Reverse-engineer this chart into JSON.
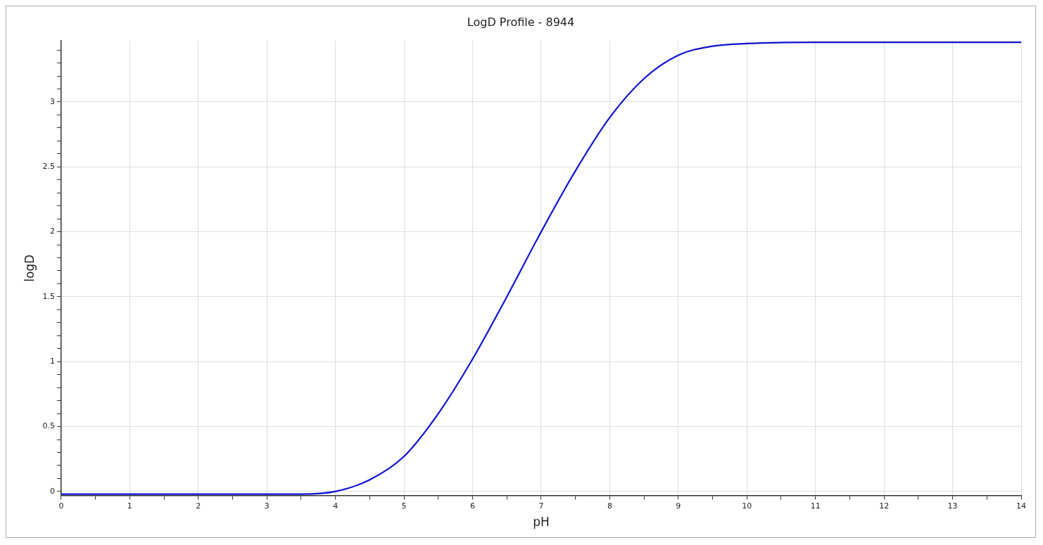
{
  "chart_data": {
    "type": "line",
    "title": "LogD Profile - 8944",
    "xlabel": "pH",
    "ylabel": "logD",
    "x": [
      0,
      1,
      2,
      3,
      3.5,
      4,
      4.5,
      5,
      5.5,
      6,
      6.5,
      7,
      7.5,
      8,
      8.5,
      9,
      9.5,
      10,
      11,
      12,
      13,
      14
    ],
    "series": [
      {
        "color": "#1010d0",
        "values": [
          -0.02,
          -0.02,
          -0.02,
          -0.02,
          -0.02,
          0.0,
          0.09,
          0.27,
          0.6,
          1.02,
          1.5,
          2.0,
          2.47,
          2.88,
          3.18,
          3.36,
          3.43,
          3.45,
          3.46,
          3.46,
          3.46,
          3.46
        ]
      }
    ],
    "xlim": [
      0,
      14
    ],
    "xticks": [
      0,
      {
        "value": 0.5,
        "label": null
      },
      1,
      {
        "value": 1.5,
        "label": null
      },
      2,
      {
        "value": 2.5,
        "label": null
      },
      3,
      {
        "value": 3.5,
        "label": null
      },
      4,
      {
        "value": 4.5,
        "label": null
      },
      5,
      {
        "value": 5.5,
        "label": null
      },
      6,
      {
        "value": 6.5,
        "label": null
      },
      7,
      {
        "value": 7.5,
        "label": null
      },
      8,
      {
        "value": 8.5,
        "label": null
      },
      9,
      {
        "value": 9.5,
        "label": null
      },
      10,
      {
        "value": 10.5,
        "label": null
      },
      11,
      {
        "value": 11.5,
        "label": null
      },
      12,
      {
        "value": 12.5,
        "label": null
      },
      13,
      {
        "value": 13.5,
        "label": null
      },
      14
    ],
    "ylim": [
      -0.03,
      3.47
    ],
    "yticks": [
      0,
      {
        "value": 0.1,
        "label": null
      },
      {
        "value": 0.2,
        "label": null
      },
      {
        "value": 0.3,
        "label": null
      },
      {
        "value": 0.4,
        "label": null
      },
      0.5,
      {
        "value": 0.6,
        "label": null
      },
      {
        "value": 0.7,
        "label": null
      },
      {
        "value": 0.8,
        "label": null
      },
      {
        "value": 0.9,
        "label": null
      },
      1,
      {
        "value": 1.1,
        "label": null
      },
      {
        "value": 1.2,
        "label": null
      },
      {
        "value": 1.3,
        "label": null
      },
      {
        "value": 1.4,
        "label": null
      },
      1.5,
      {
        "value": 1.6,
        "label": null
      },
      {
        "value": 1.7,
        "label": null
      },
      {
        "value": 1.8,
        "label": null
      },
      {
        "value": 1.9,
        "label": null
      },
      2,
      {
        "value": 2.1,
        "label": null
      },
      {
        "value": 2.2,
        "label": null
      },
      {
        "value": 2.3,
        "label": null
      },
      {
        "value": 2.4,
        "label": null
      },
      2.5,
      {
        "value": 2.6,
        "label": null
      },
      {
        "value": 2.7,
        "label": null
      },
      {
        "value": 2.8,
        "label": null
      },
      {
        "value": 2.9,
        "label": null
      },
      3,
      {
        "value": 3.1,
        "label": null
      },
      {
        "value": 3.2,
        "label": null
      },
      {
        "value": 3.3,
        "label": null
      },
      {
        "value": 3.4,
        "label": null
      }
    ],
    "grid": true,
    "marker": "none",
    "line_style": "solid"
  }
}
